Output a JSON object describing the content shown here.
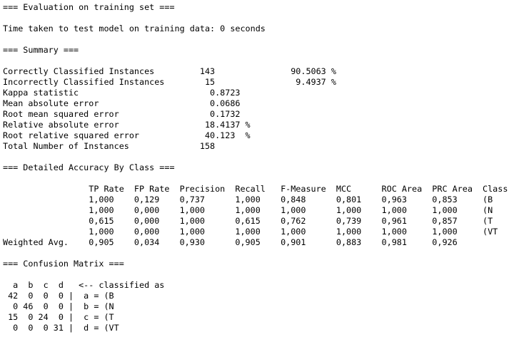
{
  "output": {
    "lines": [
      "=== Evaluation on training set ===",
      "",
      "Time taken to test model on training data: 0 seconds",
      "",
      "=== Summary ===",
      "",
      "Correctly Classified Instances         143               90.5063 %",
      "Incorrectly Classified Instances        15                9.4937 %",
      "Kappa statistic                          0.8723",
      "Mean absolute error                      0.0686",
      "Root mean squared error                  0.1732",
      "Relative absolute error                 18.4137 %",
      "Root relative squared error             40.123  %",
      "Total Number of Instances              158",
      "",
      "=== Detailed Accuracy By Class ===",
      "",
      "                 TP Rate  FP Rate  Precision  Recall   F-Measure  MCC      ROC Area  PRC Area  Class",
      "                 1,000    0,129    0,737      1,000    0,848      0,801    0,963     0,853     (B",
      "                 1,000    0,000    1,000      1,000    1,000      1,000    1,000     1,000     (N",
      "                 0,615    0,000    1,000      0,615    0,762      0,739    0,961     0,857     (T",
      "                 1,000    0,000    1,000      1,000    1,000      1,000    1,000     1,000     (VT",
      "Weighted Avg.    0,905    0,034    0,930      0,905    0,901      0,883    0,981     0,926",
      "",
      "=== Confusion Matrix ===",
      "",
      "  a  b  c  d   <-- classified as",
      " 42  0  0  0 |  a = (B",
      "  0 46  0  0 |  b = (N",
      " 15  0 24  0 |  c = (T",
      "  0  0  0 31 |  d = (VT"
    ]
  }
}
